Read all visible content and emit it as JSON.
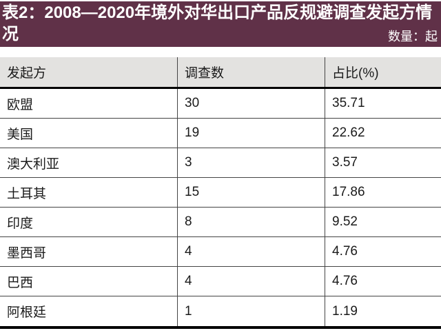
{
  "header": {
    "title": "表2：2008—2020年境外对华出口产品反规避调查发起方情况",
    "unit_note": "数量：起"
  },
  "table": {
    "columns": [
      "发起方",
      "调查数",
      "占比(%)"
    ],
    "rows": [
      {
        "initiator": "欧盟",
        "count": "30",
        "share": "35.71"
      },
      {
        "initiator": "美国",
        "count": "19",
        "share": "22.62"
      },
      {
        "initiator": "澳大利亚",
        "count": "3",
        "share": "3.57"
      },
      {
        "initiator": "土耳其",
        "count": "15",
        "share": "17.86"
      },
      {
        "initiator": "印度",
        "count": "8",
        "share": "9.52"
      },
      {
        "initiator": "墨西哥",
        "count": "4",
        "share": "4.76"
      },
      {
        "initiator": "巴西",
        "count": "4",
        "share": "4.76"
      },
      {
        "initiator": "阿根廷",
        "count": "1",
        "share": "1.19"
      }
    ]
  },
  "chart_data": {
    "type": "table",
    "title": "表2：2008—2020年境外对华出口产品反规避调查发起方情况",
    "unit_label": "数量：起",
    "columns": [
      "发起方",
      "调查数",
      "占比(%)"
    ],
    "rows": [
      [
        "欧盟",
        30,
        35.71
      ],
      [
        "美国",
        19,
        22.62
      ],
      [
        "澳大利亚",
        3,
        3.57
      ],
      [
        "土耳其",
        15,
        17.86
      ],
      [
        "印度",
        8,
        9.52
      ],
      [
        "墨西哥",
        4,
        4.76
      ],
      [
        "巴西",
        4,
        4.76
      ],
      [
        "阿根廷",
        1,
        1.19
      ]
    ]
  },
  "colors": {
    "title_bar_bg": "#603148",
    "title_text": "#ffffff",
    "table_header_bg": "#e3e2e0",
    "grid_line": "#434343",
    "heavy_line": "#000000"
  }
}
